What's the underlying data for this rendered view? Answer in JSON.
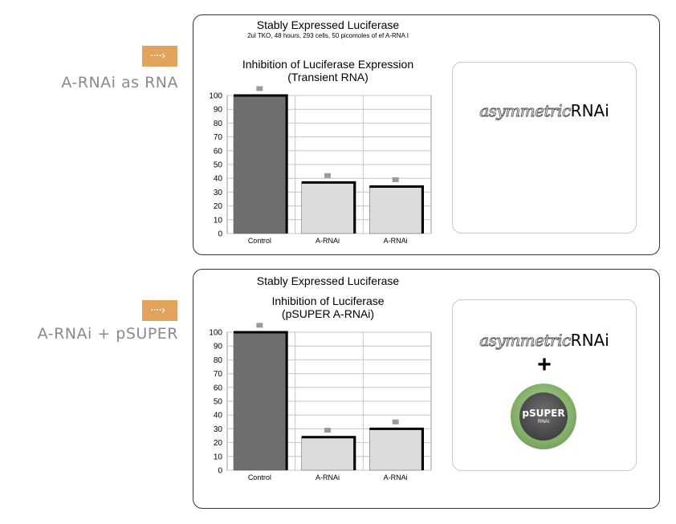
{
  "sections": [
    {
      "side_label": "A-RNAi as RNA",
      "tag_icon": "dotted-arrow-icon",
      "title": "Stably Expressed Luciferase",
      "subtitle": "2ul TKO, 48 hours, 293 cells, 50 picomoles of ef A-RNA I",
      "chart_title_1": "Inhibition of Luciferase Expression",
      "chart_title_2": "(Transient RNA)",
      "logo_italic": "asymmetric",
      "logo_rest": "RNAi"
    },
    {
      "side_label": "A-RNAi + pSUPER",
      "tag_icon": "dotted-arrow-icon",
      "title": "Stably Expressed Luciferase",
      "chart_title_1": "Inhibition of Luciferase",
      "chart_title_2": "(pSUPER A-RNAi)",
      "logo_italic": "asymmetric",
      "logo_rest": "RNAi",
      "plus": "+",
      "psuper_word": "pSUPER",
      "psuper_sub": "RNAi"
    }
  ],
  "colors": {
    "accent": "#e2a45c",
    "control_bar": "#6e6e6e",
    "rnai_bar": "#dcdcdc",
    "error_marker": "#9a9a9a",
    "side_label": "#8a8a8a"
  },
  "chart_data": [
    {
      "type": "bar",
      "title": "Inhibition of Luciferase Expression (Transient RNA)",
      "categories": [
        "Control",
        "A-RNAi",
        "A-RNAi"
      ],
      "values": [
        100,
        37,
        34
      ],
      "error_markers": [
        105,
        42,
        39
      ],
      "ylim": [
        0,
        100
      ],
      "yticks": [
        0,
        10,
        20,
        30,
        40,
        50,
        60,
        70,
        80,
        90,
        100
      ],
      "grid": true
    },
    {
      "type": "bar",
      "title": "Inhibition of Luciferase (pSUPER A-RNAi)",
      "categories": [
        "Control",
        "A-RNAi",
        "A-RNAi"
      ],
      "values": [
        100,
        24,
        30
      ],
      "error_markers": [
        105,
        29,
        35
      ],
      "ylim": [
        0,
        100
      ],
      "yticks": [
        0,
        10,
        20,
        30,
        40,
        50,
        60,
        70,
        80,
        90,
        100
      ],
      "grid": true
    }
  ]
}
